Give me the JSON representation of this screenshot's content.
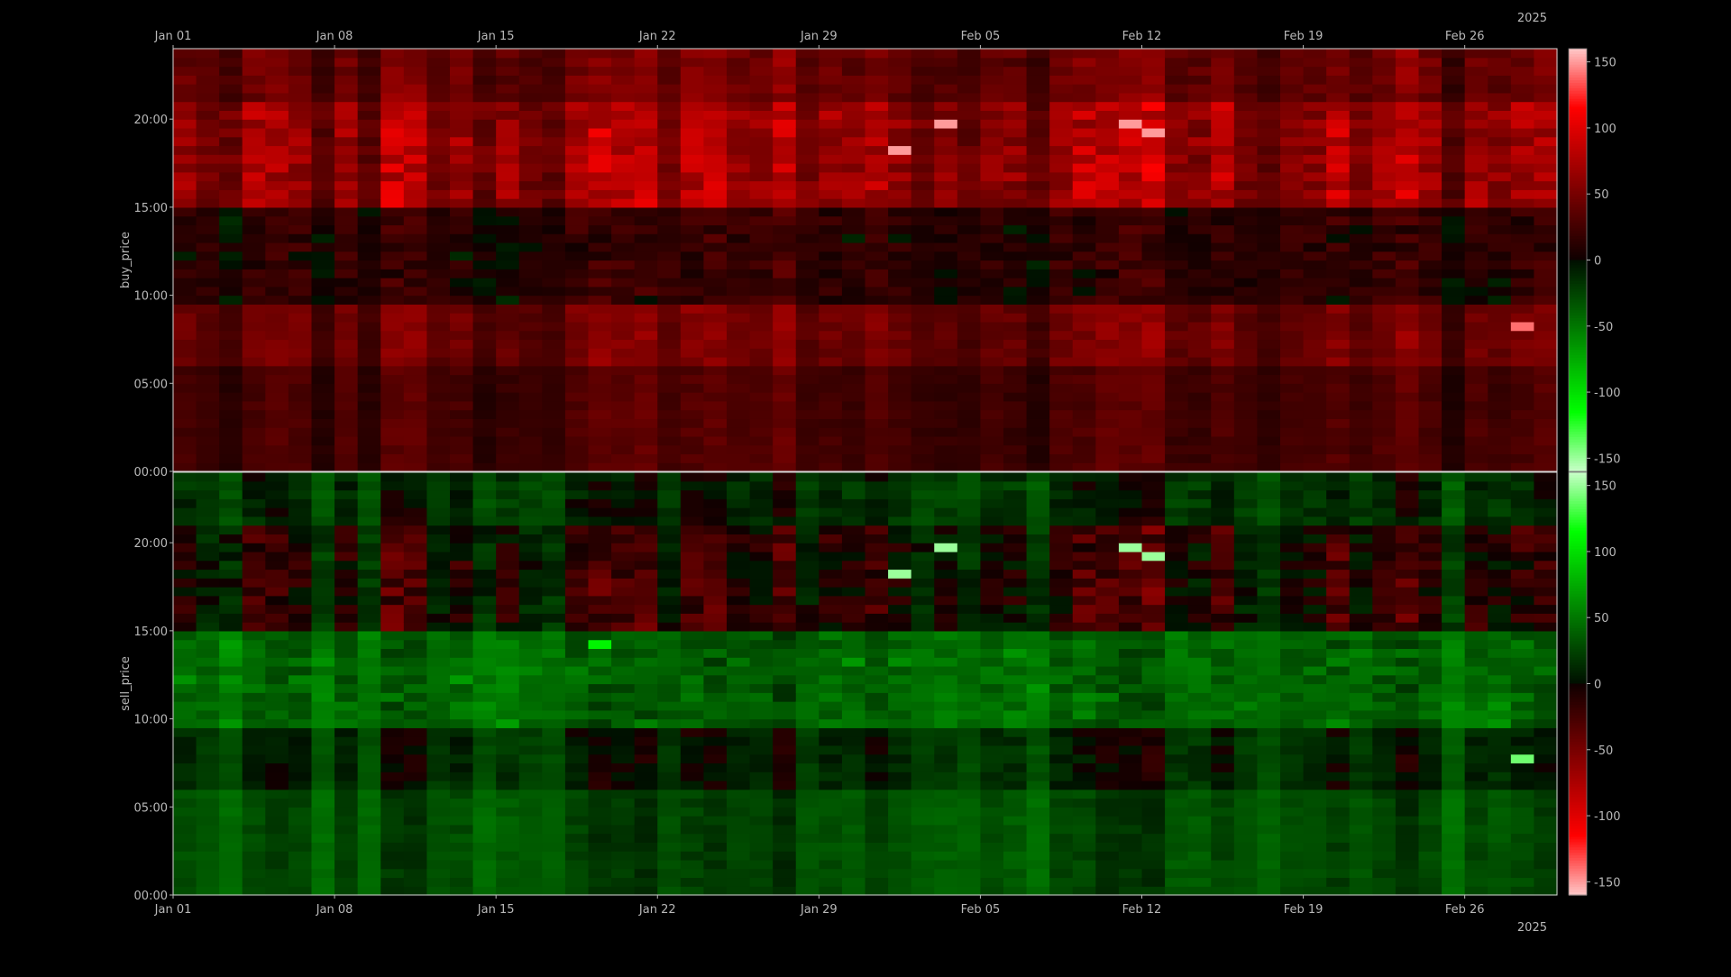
{
  "chart_data": [
    {
      "type": "heatmap",
      "ylabel": "buy_price",
      "xlabel": "",
      "year_label": "2025",
      "x_tick_labels": [
        "Jan 01",
        "Jan 08",
        "Jan 15",
        "Jan 22",
        "Jan 29",
        "Feb 05",
        "Feb 12",
        "Feb 19",
        "Feb 26"
      ],
      "y_tick_labels": [
        "00:00",
        "05:00",
        "10:00",
        "15:00",
        "20:00"
      ],
      "x_range": [
        "2025-01-01",
        "2025-03-02"
      ],
      "y_range": [
        "00:00",
        "24:00"
      ],
      "colorbar": {
        "ticks": [
          150,
          100,
          50,
          0,
          -50,
          -100,
          -150
        ],
        "range": [
          -160,
          160
        ],
        "positive_color": "red",
        "negative_color": "green"
      },
      "notable_cells": [
        {
          "date": "2025-01-19",
          "time": "19:00",
          "value": 110
        },
        {
          "date": "2025-02-01",
          "time": "18:00",
          "value": 150
        },
        {
          "date": "2025-02-03",
          "time": "19:30",
          "value": 150
        },
        {
          "date": "2025-02-11",
          "time": "19:30",
          "value": 150
        },
        {
          "date": "2025-02-12",
          "time": "19:00",
          "value": 150
        },
        {
          "date": "2025-02-28",
          "time": "08:00",
          "value": 140
        }
      ]
    },
    {
      "type": "heatmap",
      "ylabel": "sell_price",
      "xlabel": "",
      "year_label": "2025",
      "x_tick_labels": [
        "Jan 01",
        "Jan 08",
        "Jan 15",
        "Jan 22",
        "Jan 29",
        "Feb 05",
        "Feb 12",
        "Feb 19",
        "Feb 26"
      ],
      "y_tick_labels": [
        "00:00",
        "05:00",
        "10:00",
        "15:00",
        "20:00"
      ],
      "x_range": [
        "2025-01-01",
        "2025-03-02"
      ],
      "y_range": [
        "00:00",
        "24:00"
      ],
      "colorbar": {
        "ticks": [
          150,
          100,
          50,
          0,
          -50,
          -100,
          -150
        ],
        "range": [
          -160,
          160
        ],
        "positive_color": "green",
        "negative_color": "red"
      },
      "notable_cells": [
        {
          "date": "2025-01-19",
          "time": "14:00",
          "value": 110
        },
        {
          "date": "2025-02-01",
          "time": "18:00",
          "value": 150
        },
        {
          "date": "2025-02-03",
          "time": "19:30",
          "value": 150
        },
        {
          "date": "2025-02-11",
          "time": "19:30",
          "value": 150
        },
        {
          "date": "2025-02-12",
          "time": "19:00",
          "value": 150
        },
        {
          "date": "2025-02-28",
          "time": "07:30",
          "value": 140
        }
      ]
    }
  ]
}
